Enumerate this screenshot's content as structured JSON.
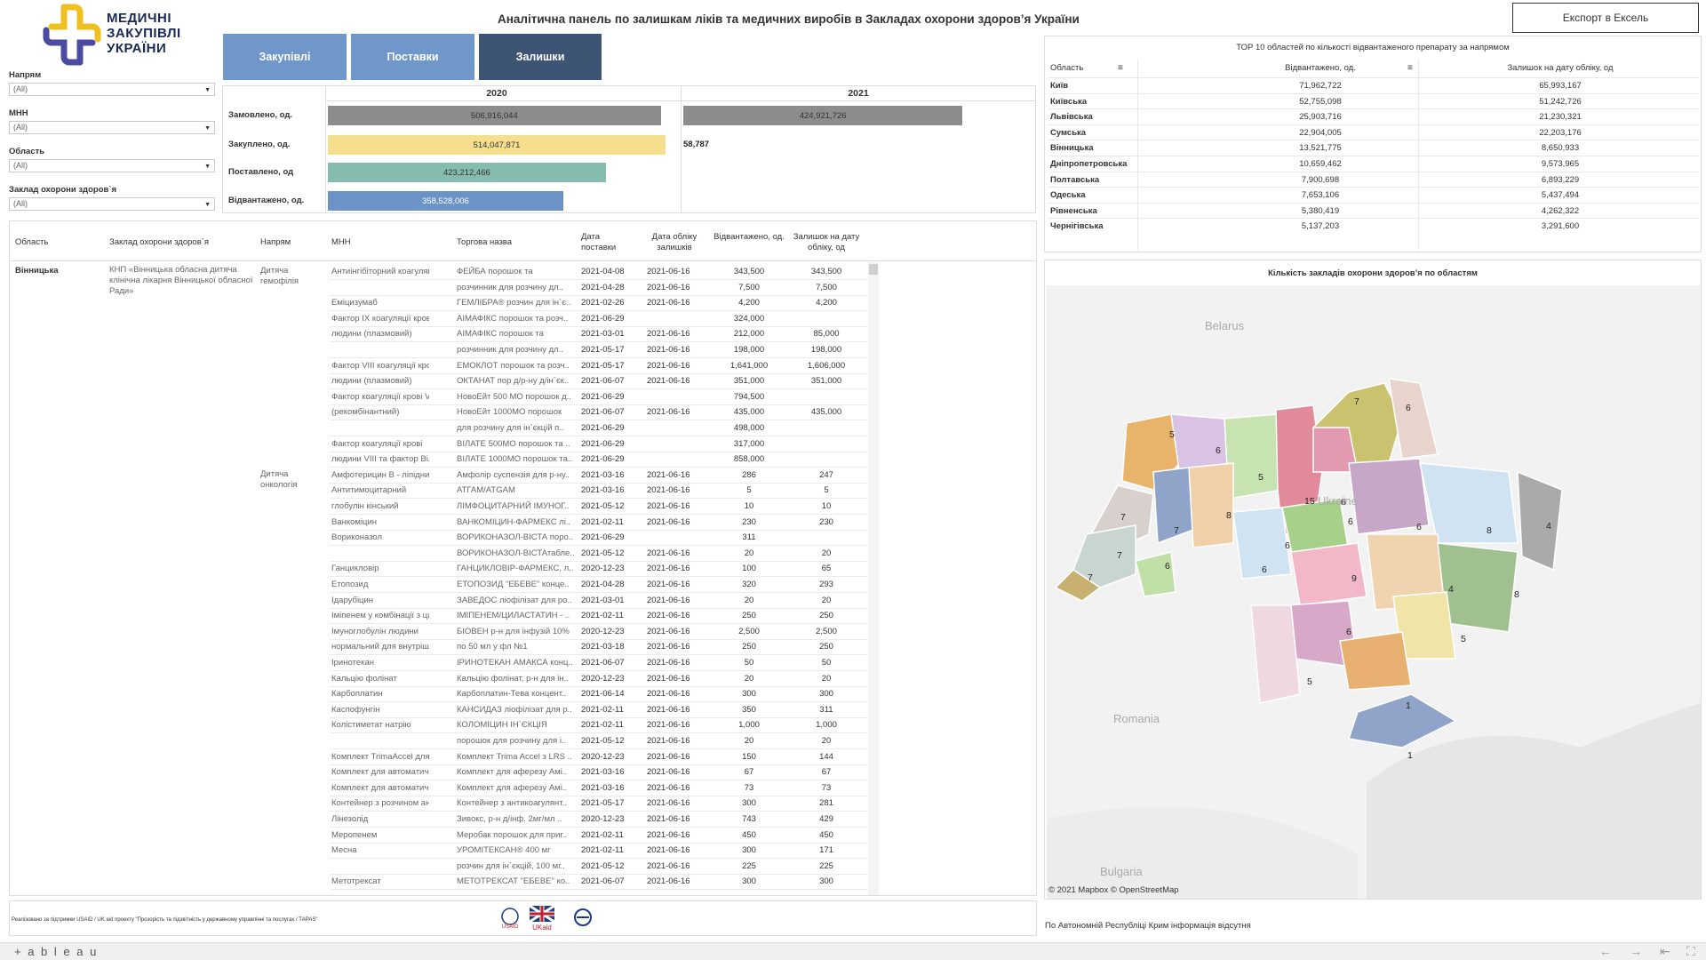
{
  "logo": {
    "line1": "МЕДИЧНІ",
    "line2": "ЗАКУПІВЛІ",
    "line3": "УКРАЇНИ"
  },
  "title": "Аналітична панель по залишкам ліків та медичних виробів в Закладах охорони здоров’я України",
  "export_button": "Експорт в Ексель",
  "filters": [
    {
      "label": "Напрям",
      "value": "(All)"
    },
    {
      "label": "МНН",
      "value": "(All)"
    },
    {
      "label": "Область",
      "value": "(All)"
    },
    {
      "label": "Заклад охорони здоров`я",
      "value": "(All)"
    }
  ],
  "tabs": [
    {
      "label": "Закупівлі",
      "color": "#6f97c9"
    },
    {
      "label": "Поставки",
      "color": "#6f97c9"
    },
    {
      "label": "Залишки",
      "color": "#3d5475"
    }
  ],
  "summary": {
    "years": [
      "2020",
      "2021"
    ],
    "rows": [
      {
        "label": "Замовлено, од.",
        "v2020": "506,916,044",
        "v2021": "424,921,726",
        "color": "#8c8c8c",
        "f2020": 0.986,
        "f2021": 0.827
      },
      {
        "label": "Закуплено, од.",
        "v2020": "514,047,871",
        "v2021": "58,787",
        "color": "#f5df8f",
        "f2020": 1.0,
        "f2021": 0.0
      },
      {
        "label": "Поставлено, од",
        "v2020": "423,212,466",
        "v2021": "",
        "color": "#86bbb0",
        "f2020": 0.823,
        "f2021": 0
      },
      {
        "label": "Відвантажено, од.",
        "v2020": "358,528,006",
        "v2021": "",
        "color": "#6b93c6",
        "f2020": 0.697,
        "f2021": 0
      }
    ]
  },
  "top10": {
    "title": "ТОР 10 областей по кількості відвантаженого препарату за напрямом",
    "headers": [
      "Область",
      "Відвантажено, од.",
      "Залишок на дату обліку, од"
    ],
    "rows": [
      [
        "Київ",
        "71,962,722",
        "65,993,167"
      ],
      [
        "Київська",
        "52,755,098",
        "51,242,726"
      ],
      [
        "Львівська",
        "25,903,716",
        "21,230,321"
      ],
      [
        "Сумська",
        "22,904,005",
        "22,203,176"
      ],
      [
        "Вінницька",
        "13,521,775",
        "8,650,933"
      ],
      [
        "Дніпропетровська",
        "10,659,462",
        "9,573,965"
      ],
      [
        "Полтавська",
        "7,900,698",
        "6,893,229"
      ],
      [
        "Одеська",
        "7,653,106",
        "5,437,494"
      ],
      [
        "Рівненська",
        "5,380,419",
        "4,262,322"
      ],
      [
        "Чернігівська",
        "5,137,203",
        "3,291,600"
      ]
    ]
  },
  "map": {
    "title": "Кількість закладів охорони здоров’я по областям",
    "credit": "© 2021 Mapbox  © OpenStreetMap",
    "labels": {
      "belarus": "Belarus",
      "ukraine": "Ukraine",
      "romania": "Romania",
      "bulgaria": "Bulgaria"
    },
    "values": [
      "5",
      "6",
      "5",
      "7",
      "6",
      "7",
      "15",
      "6",
      "7",
      "8",
      "6",
      "6",
      "6",
      "8",
      "4",
      "6",
      "7",
      "9",
      "6",
      "7",
      "8",
      "4",
      "6",
      "5",
      "5",
      "1",
      "1"
    ],
    "note": "По Автономній Республіці Крим інформація відсутня"
  },
  "detail": {
    "headers": [
      "Область",
      "Заклад охорони здоров`я",
      "Напрям",
      "МНН",
      "Торгова назва",
      "Дата поставки",
      "Дата обліку залишків",
      "Відвантажено, од.",
      "Залишок на дату обліку, од"
    ],
    "region": "Вінницька",
    "facility": "КНП «Вінницька обласна дитяча клінічна лікарня Вінницької обласної Ради»",
    "directions": [
      "Дитяча гемофілія",
      "Дитяча онкологія"
    ],
    "rows": [
      [
        "Антиінгібіторний коагулянтний комплекс",
        "ФЕЙБА порошок та",
        "2021-04-08",
        "2021-06-16",
        "343,500",
        "343,500"
      ],
      [
        "",
        "розчинник для розчину дл..",
        "2021-04-28",
        "2021-06-16",
        "7,500",
        "7,500"
      ],
      [
        "Еміцизумаб",
        "ГЕМЛІБРА® розчин для ін`є..",
        "2021-02-26",
        "2021-06-16",
        "4,200",
        "4,200"
      ],
      [
        "Фактор IX коагуляції крові",
        "АІМАФІКС порошок та розч..",
        "2021-06-29",
        "",
        "324,000",
        ""
      ],
      [
        "людини (плазмовий)",
        "АІМАФІКС порошок та",
        "2021-03-01",
        "2021-06-16",
        "212,000",
        "85,000"
      ],
      [
        "",
        "розчинник для розчину дл..",
        "2021-05-17",
        "2021-06-16",
        "198,000",
        "198,000"
      ],
      [
        "Фактор VIII коагуляції крові",
        "ЕМОКЛОТ порошок та розч..",
        "2021-05-17",
        "2021-06-16",
        "1,641,000",
        "1,606,000"
      ],
      [
        "людини (плазмовий)",
        "ОКТАНАТ пор д/р-ну д/ін`єк..",
        "2021-06-07",
        "2021-06-16",
        "351,000",
        "351,000"
      ],
      [
        "Фактор коагуляції крові VIII",
        "НовоЕйт 500 МО порошок д..",
        "2021-06-29",
        "",
        "794,500",
        ""
      ],
      [
        "(рекомбінантний)",
        "НовоЕйт 1000МО порошок",
        "2021-06-07",
        "2021-06-16",
        "435,000",
        "435,000"
      ],
      [
        "",
        "для розчину для ін`єкцій п..",
        "2021-06-29",
        "",
        "498,000",
        ""
      ],
      [
        "Фактор коагуляції крові",
        "ВІЛАТЕ 500МО порошок та ..",
        "2021-06-29",
        "",
        "317,000",
        ""
      ],
      [
        "людини VIII та фактор Вілл..",
        "ВІЛАТЕ 1000МО порошок та..",
        "2021-06-29",
        "",
        "858,000",
        ""
      ],
      [
        "Амфотерицин В - ліпідний ..",
        "Амфолір суспензія для р-ну..",
        "2021-03-16",
        "2021-06-16",
        "286",
        "247"
      ],
      [
        "Антитимоцитарний",
        "АТГАМ/ATGAM",
        "2021-03-16",
        "2021-06-16",
        "5",
        "5"
      ],
      [
        "глобулін кінський",
        "ЛІМФОЦИТАРНИЙ ІМУНОГ..",
        "2021-05-12",
        "2021-06-16",
        "10",
        "10"
      ],
      [
        "Ванкоміцин",
        "ВАНКОМІЦИН-ФАРМЕКС лі..",
        "2021-02-11",
        "2021-06-16",
        "230",
        "230"
      ],
      [
        "Вориконазол",
        "ВОРИКОНАЗОЛ-ВІСТА поро..",
        "2021-06-29",
        "",
        "311",
        ""
      ],
      [
        "",
        "ВОРИКОНАЗОЛ-ВІСТАтабле..",
        "2021-05-12",
        "2021-06-16",
        "20",
        "20"
      ],
      [
        "Ганцикловір",
        "ГАНЦИКЛОВІР-ФАРМЕКС, л..",
        "2020-12-23",
        "2021-06-16",
        "100",
        "65"
      ],
      [
        "Етопозид",
        "ЕТОПОЗИД \"ЕБЕВЕ\" конце..",
        "2021-04-28",
        "2021-06-16",
        "320",
        "293"
      ],
      [
        "Ідарубіцин",
        "ЗАВЕДОС ліофілізат для ро..",
        "2021-03-01",
        "2021-06-16",
        "20",
        "20"
      ],
      [
        "Іміпенем у комбінації з цил..",
        "ІМІПЕНЕМ/ЦИЛАСТАТИН - ..",
        "2021-02-11",
        "2021-06-16",
        "250",
        "250"
      ],
      [
        "Імуноглобулін людини",
        "БІОВЕН р-н для інфузій 10%",
        "2020-12-23",
        "2021-06-16",
        "2,500",
        "2,500"
      ],
      [
        "нормальний для внутрішнь..",
        "по 50 мл у фл №1",
        "2021-03-18",
        "2021-06-16",
        "250",
        "250"
      ],
      [
        "Іринотекан",
        "ІРИНОТЕКАН АМАКСА конц..",
        "2021-06-07",
        "2021-06-16",
        "50",
        "50"
      ],
      [
        "Кальцію фолінат",
        "Кальцію фолінат, р-н для ін..",
        "2020-12-23",
        "2021-06-16",
        "20",
        "20"
      ],
      [
        "Карбоплатин",
        "Карбоплатин-Тева концент..",
        "2021-06-14",
        "2021-06-16",
        "300",
        "300"
      ],
      [
        "Каспофунгін",
        "КАНСИДАЗ ліофілізат для р..",
        "2021-02-11",
        "2021-06-16",
        "350",
        "311"
      ],
      [
        "Колістиметат натрію",
        "КОЛОМІЦИН ІН`ЄКЦІЯ",
        "2021-02-11",
        "2021-06-16",
        "1,000",
        "1,000"
      ],
      [
        "",
        "порошок для розчину для і..",
        "2021-05-12",
        "2021-06-16",
        "20",
        "20"
      ],
      [
        "Комплект TrimaAccel для т..",
        "Комплект Trima Accel з LRS ..",
        "2020-12-23",
        "2021-06-16",
        "150",
        "144"
      ],
      [
        "Комплект для автоматично..",
        "Комплект для аферезу Амі..",
        "2021-03-16",
        "2021-06-16",
        "67",
        "67"
      ],
      [
        "Комплект для автоматично..",
        "Комплект для аферезу Амі..",
        "2021-03-16",
        "2021-06-16",
        "73",
        "73"
      ],
      [
        "Контейнер з розчином ант..",
        "Контейнер з антикоагулянт..",
        "2021-05-17",
        "2021-06-16",
        "300",
        "281"
      ],
      [
        "Лінезолід",
        "Зивокс, р-н д/інф. 2мг/мл ..",
        "2020-12-23",
        "2021-06-16",
        "743",
        "429"
      ],
      [
        "Меропенем",
        "Меробак порошок для приг..",
        "2021-02-11",
        "2021-06-16",
        "450",
        "450"
      ],
      [
        "Месна",
        "УРОМІТЕКСАН® 400 мг",
        "2021-02-11",
        "2021-06-16",
        "300",
        "171"
      ],
      [
        "",
        "розчин для ін`єкцій, 100 мг..",
        "2021-05-12",
        "2021-06-16",
        "225",
        "225"
      ],
      [
        "Метотрексат",
        "МЕТОТРЕКСАТ \"ЕБЕВЕ\" ко..",
        "2021-06-07",
        "2021-06-16",
        "300",
        "300"
      ]
    ]
  },
  "footer": {
    "text": "Реалізовано за підтримки USAID / UK aid проекту \"Прозорість та підзвітність у державному управлінні та послугах / ТАРАS\"",
    "logos": [
      "USAID",
      "UKaid",
      "Eurasia Foundation"
    ]
  },
  "tableau": "+ a b l e a u"
}
